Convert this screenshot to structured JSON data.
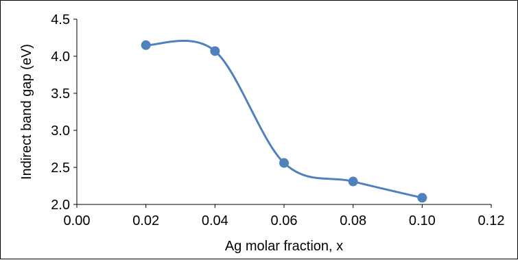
{
  "chart_data": {
    "type": "scatter",
    "title": "",
    "xlabel": "Ag molar fraction, x",
    "ylabel": "Indirect band gap (eV)",
    "xlim": [
      0.0,
      0.12
    ],
    "ylim": [
      2.0,
      4.5
    ],
    "x_ticks": [
      "0.00",
      "0.02",
      "0.04",
      "0.06",
      "0.08",
      "0.10",
      "0.12"
    ],
    "y_ticks": [
      "2.0",
      "2.5",
      "3.0",
      "3.5",
      "4.0",
      "4.5"
    ],
    "grid": false,
    "legend": "none",
    "smooth_line": true,
    "series": [
      {
        "x": [
          0.02,
          0.04,
          0.06,
          0.08,
          0.1
        ],
        "y": [
          4.15,
          4.07,
          2.56,
          2.31,
          2.09
        ],
        "color": "#4f81bd"
      }
    ]
  }
}
